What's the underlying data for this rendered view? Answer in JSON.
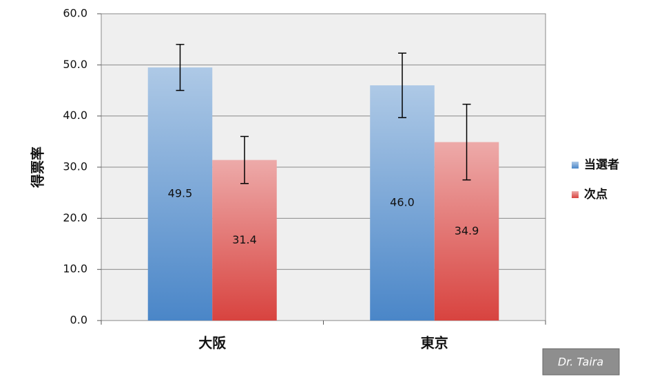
{
  "chart_data": {
    "type": "bar",
    "y_label": "得票率",
    "categories": [
      "大阪",
      "東京"
    ],
    "series": [
      {
        "name": "当選者",
        "color": "#4a86c8",
        "values": [
          49.5,
          46.0
        ],
        "value_labels": [
          "49.5",
          "46.0"
        ],
        "errors": [
          4.5,
          6.3
        ]
      },
      {
        "name": "次点",
        "color": "#d8433f",
        "values": [
          31.4,
          34.9
        ],
        "value_labels": [
          "31.4",
          "34.9"
        ],
        "errors": [
          4.6,
          7.4
        ]
      }
    ],
    "ylim": [
      0,
      60
    ],
    "yticks": [
      {
        "value": 0,
        "label": "0.0"
      },
      {
        "value": 10,
        "label": "10.0"
      },
      {
        "value": 20,
        "label": "20.0"
      },
      {
        "value": 30,
        "label": "30.0"
      },
      {
        "value": 40,
        "label": "40.0"
      },
      {
        "value": 50,
        "label": "50.0"
      },
      {
        "value": 60,
        "label": "60.0"
      }
    ],
    "grid": true,
    "legend": "right",
    "watermark": "Dr. Taira"
  }
}
